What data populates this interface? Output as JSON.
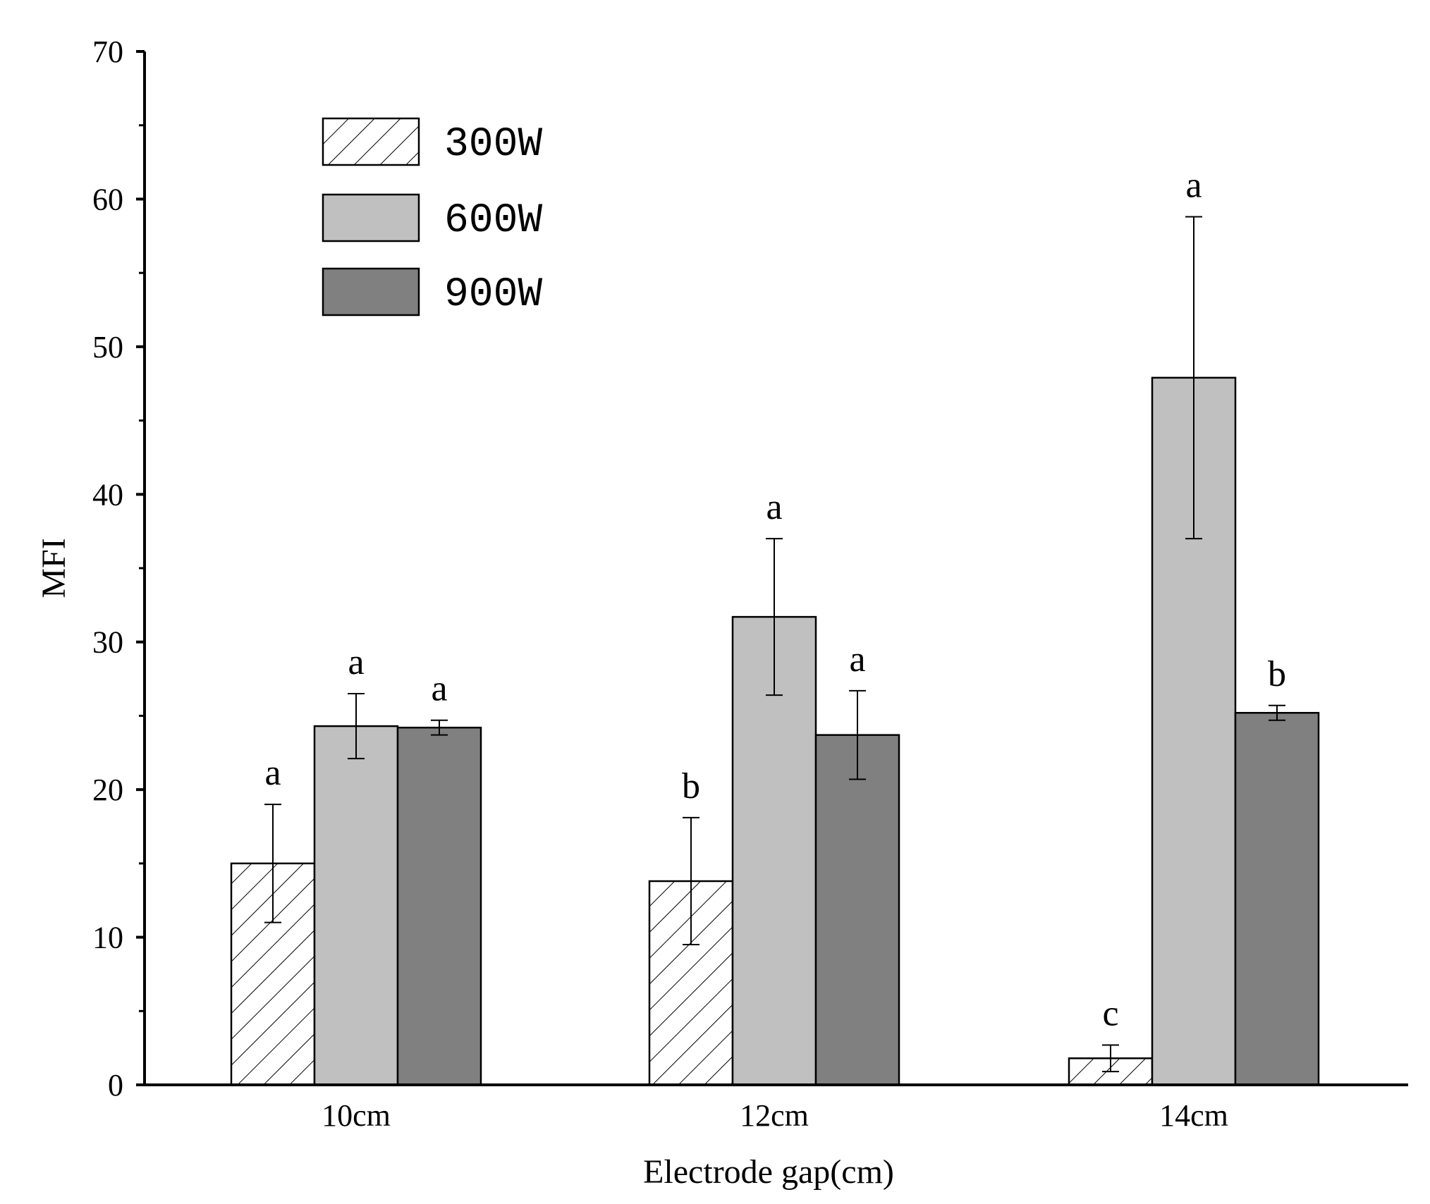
{
  "chart_data": {
    "type": "bar",
    "title": "",
    "xlabel": "Electrode gap(cm)",
    "ylabel": "MFI",
    "ylim": [
      0,
      70
    ],
    "yticks": [
      0,
      10,
      20,
      30,
      40,
      50,
      60,
      70
    ],
    "categories": [
      "10cm",
      "12cm",
      "14cm"
    ],
    "legend_position": "top-left",
    "series": [
      {
        "name": "300W",
        "style": "hatched",
        "fill": "#ffffff",
        "values": [
          15.0,
          13.8,
          1.8
        ],
        "errors": [
          4.0,
          4.3,
          0.9
        ],
        "labels": [
          "a",
          "b",
          "c"
        ]
      },
      {
        "name": "600W",
        "style": "solid",
        "fill": "#c0c0c0",
        "values": [
          24.3,
          31.7,
          47.9
        ],
        "errors": [
          2.2,
          5.3,
          10.9
        ],
        "labels": [
          "a",
          "a",
          "a"
        ]
      },
      {
        "name": "900W",
        "style": "solid",
        "fill": "#808080",
        "values": [
          24.2,
          23.7,
          25.2
        ],
        "errors": [
          0.5,
          3.0,
          0.5
        ],
        "labels": [
          "a",
          "a",
          "b"
        ]
      }
    ]
  }
}
